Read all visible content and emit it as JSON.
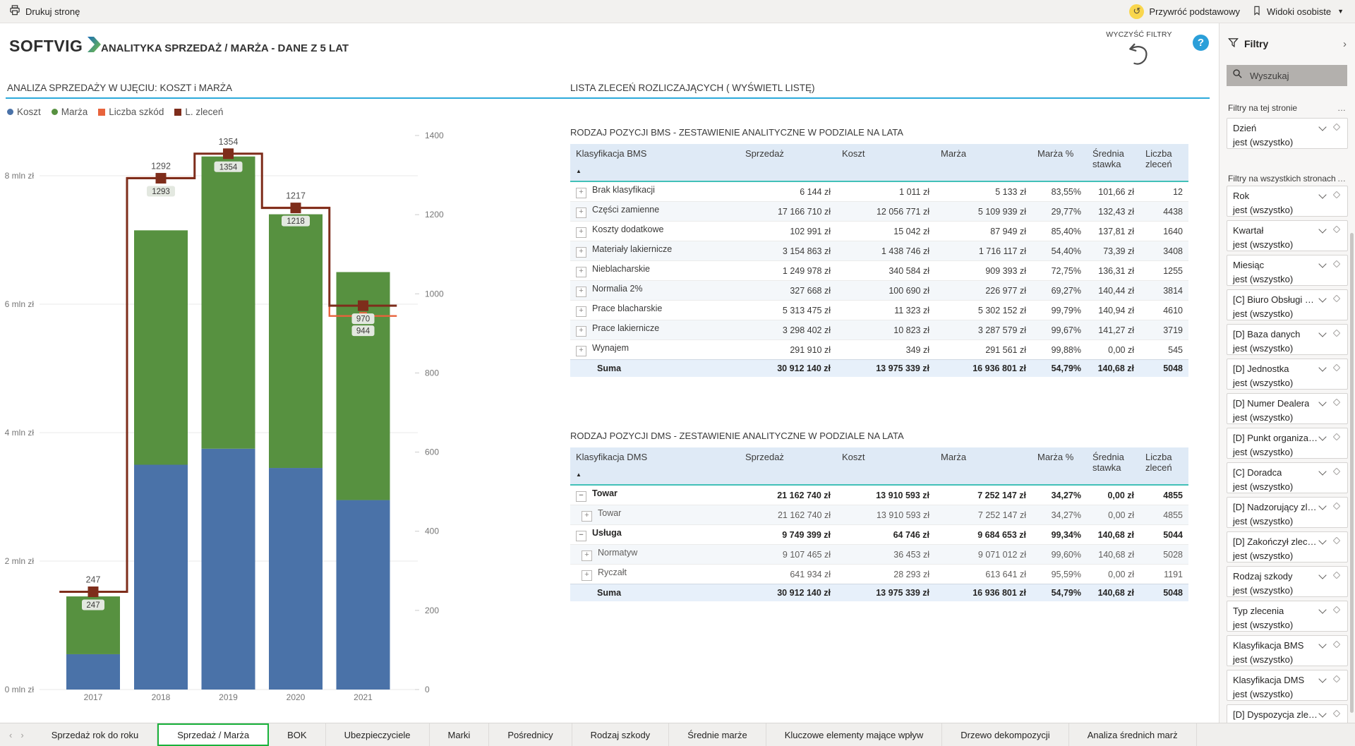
{
  "top_bar": {
    "print_label": "Drukuj stronę",
    "restore_label": "Przywróć podstawowy",
    "personal_views_label": "Widoki osobiste"
  },
  "header": {
    "logo_text": "SOFTVIG",
    "title": "ANALITYKA SPRZEDAŻ / MARŻA - DANE Z 5 LAT",
    "clear_filters_label": "WYCZYŚĆ FILTRY",
    "help_icon_text": "?"
  },
  "sections": {
    "chart_title": "ANALIZA SPRZEDAŻY W UJĘCIU: KOSZT i MARŻA",
    "list_title": "LISTA ZLECEŃ ROZLICZAJĄCYCH ( WYŚWIETL LISTĘ)"
  },
  "chart_data": {
    "type": "combo-stacked-bar-line",
    "title": "ANALIZA SPRZEDAŻY W UJĘCIU: KOSZT i MARŻA",
    "categories": [
      "2017",
      "2018",
      "2019",
      "2020",
      "2021"
    ],
    "bar_series": [
      {
        "name": "Koszt",
        "color": "#4A72A8",
        "values_mln": [
          0.55,
          3.5,
          3.75,
          3.45,
          2.95
        ]
      },
      {
        "name": "Marża",
        "color": "#579140",
        "values_mln": [
          0.9,
          3.65,
          4.55,
          3.95,
          3.55
        ]
      }
    ],
    "line_series": [
      {
        "name": "Liczba szkód",
        "color": "#E8633C",
        "values": [
          247,
          1293,
          1354,
          1218,
          944
        ]
      },
      {
        "name": "L. zleceń",
        "color": "#7E2D1B",
        "values": [
          247,
          1292,
          1354,
          1217,
          970
        ]
      }
    ],
    "point_labels": {
      "above": [
        "247",
        "1292",
        "1354",
        "1217",
        null
      ],
      "badge": [
        [
          "247"
        ],
        [
          "1293"
        ],
        [
          "1354"
        ],
        [
          "1218"
        ],
        [
          "970",
          "944"
        ]
      ]
    },
    "left_axis": {
      "labels": [
        "0 mln zł",
        "2 mln zł",
        "4 mln zł",
        "6 mln zł",
        "8 mln zł"
      ],
      "mln_per_tick": 2
    },
    "right_axis": {
      "labels": [
        "0",
        "200",
        "400",
        "600",
        "800",
        "1000",
        "1200",
        "1400"
      ],
      "max": 1400
    },
    "legend": [
      {
        "label": "Koszt",
        "marker": "circle",
        "color": "#4A72A8"
      },
      {
        "label": "Marża",
        "marker": "circle",
        "color": "#579140"
      },
      {
        "label": "Liczba szkód",
        "marker": "square",
        "color": "#E8633C"
      },
      {
        "label": "L. zleceń",
        "marker": "square",
        "color": "#7E2D1B"
      }
    ],
    "grid": true,
    "legend_position": "top-left"
  },
  "tables": {
    "sort_indicator": "▲",
    "bms": {
      "title": "RODZAJ POZYCJI BMS - ZESTAWIENIE ANALITYCZNE W PODZIALE NA LATA",
      "columns": [
        "Klasyfikacja BMS",
        "Sprzedaż",
        "Koszt",
        "Marża",
        "Marża %",
        "Średnia stawka",
        "Liczba zleceń"
      ],
      "rows": [
        {
          "name": "Brak klasyfikacji",
          "expand": "plus",
          "values": [
            "6 144 zł",
            "1 011 zł",
            "5 133 zł",
            "83,55%",
            "101,66 zł",
            "12"
          ]
        },
        {
          "name": "Części zamienne",
          "expand": "plus",
          "values": [
            "17 166 710 zł",
            "12 056 771 zł",
            "5 109 939 zł",
            "29,77%",
            "132,43 zł",
            "4438"
          ]
        },
        {
          "name": "Koszty dodatkowe",
          "expand": "plus",
          "values": [
            "102 991 zł",
            "15 042 zł",
            "87 949 zł",
            "85,40%",
            "137,81 zł",
            "1640"
          ]
        },
        {
          "name": "Materiały lakiernicze",
          "expand": "plus",
          "values": [
            "3 154 863 zł",
            "1 438 746 zł",
            "1 716 117 zł",
            "54,40%",
            "73,39 zł",
            "3408"
          ]
        },
        {
          "name": "Nieblacharskie",
          "expand": "plus",
          "values": [
            "1 249 978 zł",
            "340 584 zł",
            "909 393 zł",
            "72,75%",
            "136,31 zł",
            "1255"
          ]
        },
        {
          "name": "Normalia 2%",
          "expand": "plus",
          "values": [
            "327 668 zł",
            "100 690 zł",
            "226 977 zł",
            "69,27%",
            "140,44 zł",
            "3814"
          ]
        },
        {
          "name": "Prace blacharskie",
          "expand": "plus",
          "values": [
            "5 313 475 zł",
            "11 323 zł",
            "5 302 152 zł",
            "99,79%",
            "140,94 zł",
            "4610"
          ]
        },
        {
          "name": "Prace lakiernicze",
          "expand": "plus",
          "values": [
            "3 298 402 zł",
            "10 823 zł",
            "3 287 579 zł",
            "99,67%",
            "141,27 zł",
            "3719"
          ]
        },
        {
          "name": "Wynajem",
          "expand": "plus",
          "values": [
            "291 910 zł",
            "349 zł",
            "291 561 zł",
            "99,88%",
            "0,00 zł",
            "545"
          ]
        }
      ],
      "total": {
        "name": "Suma",
        "values": [
          "30 912 140 zł",
          "13 975 339 zł",
          "16 936 801 zł",
          "54,79%",
          "140,68 zł",
          "5048"
        ]
      }
    },
    "dms": {
      "title": "RODZAJ POZYCJI DMS - ZESTAWIENIE ANALITYCZNE W PODZIALE NA LATA",
      "columns": [
        "Klasyfikacja DMS",
        "Sprzedaż",
        "Koszt",
        "Marża",
        "Marża %",
        "Średnia stawka",
        "Liczba zleceń"
      ],
      "rows": [
        {
          "name": "Towar",
          "expand": "minus",
          "bold": true,
          "values": [
            "21 162 740 zł",
            "13 910 593 zł",
            "7 252 147 zł",
            "34,27%",
            "0,00 zł",
            "4855"
          ]
        },
        {
          "name": "Towar",
          "expand": "plus",
          "sub": true,
          "values": [
            "21 162 740 zł",
            "13 910 593 zł",
            "7 252 147 zł",
            "34,27%",
            "0,00 zł",
            "4855"
          ]
        },
        {
          "name": "Usługa",
          "expand": "minus",
          "bold": true,
          "values": [
            "9 749 399 zł",
            "64 746 zł",
            "9 684 653 zł",
            "99,34%",
            "140,68 zł",
            "5044"
          ]
        },
        {
          "name": "Normatyw",
          "expand": "plus",
          "sub": true,
          "values": [
            "9 107 465 zł",
            "36 453 zł",
            "9 071 012 zł",
            "99,60%",
            "140,68 zł",
            "5028"
          ]
        },
        {
          "name": "Ryczałt",
          "expand": "plus",
          "sub": true,
          "values": [
            "641 934 zł",
            "28 293 zł",
            "613 641 zł",
            "95,59%",
            "0,00 zł",
            "1191"
          ]
        }
      ],
      "total": {
        "name": "Suma",
        "values": [
          "30 912 140 zł",
          "13 975 339 zł",
          "16 936 801 zł",
          "54,79%",
          "140,68 zł",
          "5048"
        ]
      }
    }
  },
  "filters_panel": {
    "title": "Filtry",
    "collapse_icon": "›",
    "search_placeholder": "Wyszukaj",
    "more_label": "…",
    "filter_value": "jest (wszystko)",
    "sections": [
      {
        "label": "Filtry na tej stronie",
        "filters": [
          "Dzień"
        ]
      },
      {
        "label": "Filtry na wszystkich stronach",
        "filters": [
          "Rok",
          "Kwartał",
          "Miesiąc",
          "[C] Biuro Obsługi Klie...",
          "[D] Baza danych",
          "[D] Jednostka",
          "[D] Numer Dealera",
          "[D] Punkt organizacyjny",
          "[C] Doradca",
          "[D] Nadzorujący zlece...",
          "[D] Zakończył zlecenie",
          "Rodzaj szkody",
          "Typ zlecenia",
          "Klasyfikacja BMS",
          "Klasyfikacja DMS",
          "[D] Dyspozycja zlecenia"
        ]
      }
    ]
  },
  "tabs": {
    "nav_prev": "‹",
    "nav_next": "›",
    "items": [
      {
        "label": "Sprzedaż rok do roku",
        "active": false
      },
      {
        "label": "Sprzedaż / Marża",
        "active": true
      },
      {
        "label": "BOK",
        "active": false
      },
      {
        "label": "Ubezpieczyciele",
        "active": false
      },
      {
        "label": "Marki",
        "active": false
      },
      {
        "label": "Pośrednicy",
        "active": false
      },
      {
        "label": "Rodzaj szkody",
        "active": false
      },
      {
        "label": "Średnie marże",
        "active": false
      },
      {
        "label": "Kluczowe elementy mające wpływ",
        "active": false
      },
      {
        "label": "Drzewo dekompozycji",
        "active": false
      },
      {
        "label": "Analiza średnich marż",
        "active": false
      }
    ]
  }
}
